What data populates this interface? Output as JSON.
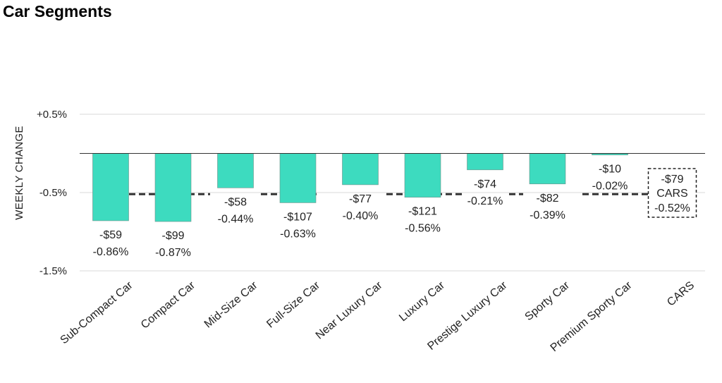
{
  "page": {
    "title": "Car Segments"
  },
  "chart_data": {
    "type": "bar",
    "ylabel": "WEEKLY CHANGE",
    "ylim": [
      -1.5,
      0.5
    ],
    "yticks": [
      {
        "value": 0.5,
        "label": "+0.5%"
      },
      {
        "value": -0.5,
        "label": "-0.5%"
      },
      {
        "value": -1.5,
        "label": "-1.5%"
      }
    ],
    "grid": true,
    "bar_color": "#3ddbbf",
    "categories": [
      "Sub-Compact Car",
      "Compact Car",
      "Mid-Size Car",
      "Full-Size Car",
      "Near Luxury Car",
      "Luxury Car",
      "Prestige Luxury Car",
      "Sporty Car",
      "Premium Sporty Car",
      "CARS"
    ],
    "values": [
      -0.86,
      -0.87,
      -0.44,
      -0.63,
      -0.4,
      -0.56,
      -0.21,
      -0.39,
      -0.02,
      -0.52
    ],
    "dollar_change": [
      "-$59",
      "-$99",
      "-$58",
      "-$107",
      "-$77",
      "-$121",
      "-$74",
      "-$82",
      "-$10",
      "-$79"
    ],
    "percent_labels": [
      "-0.86%",
      "-0.87%",
      "-0.44%",
      "-0.63%",
      "-0.40%",
      "-0.56%",
      "-0.21%",
      "-0.39%",
      "-0.02%",
      "-0.52%"
    ],
    "total": {
      "category": "CARS",
      "label": "CARS",
      "value": -0.52,
      "style": "dashed-box"
    },
    "reference_line": {
      "value": -0.52,
      "style": "dashed"
    }
  }
}
